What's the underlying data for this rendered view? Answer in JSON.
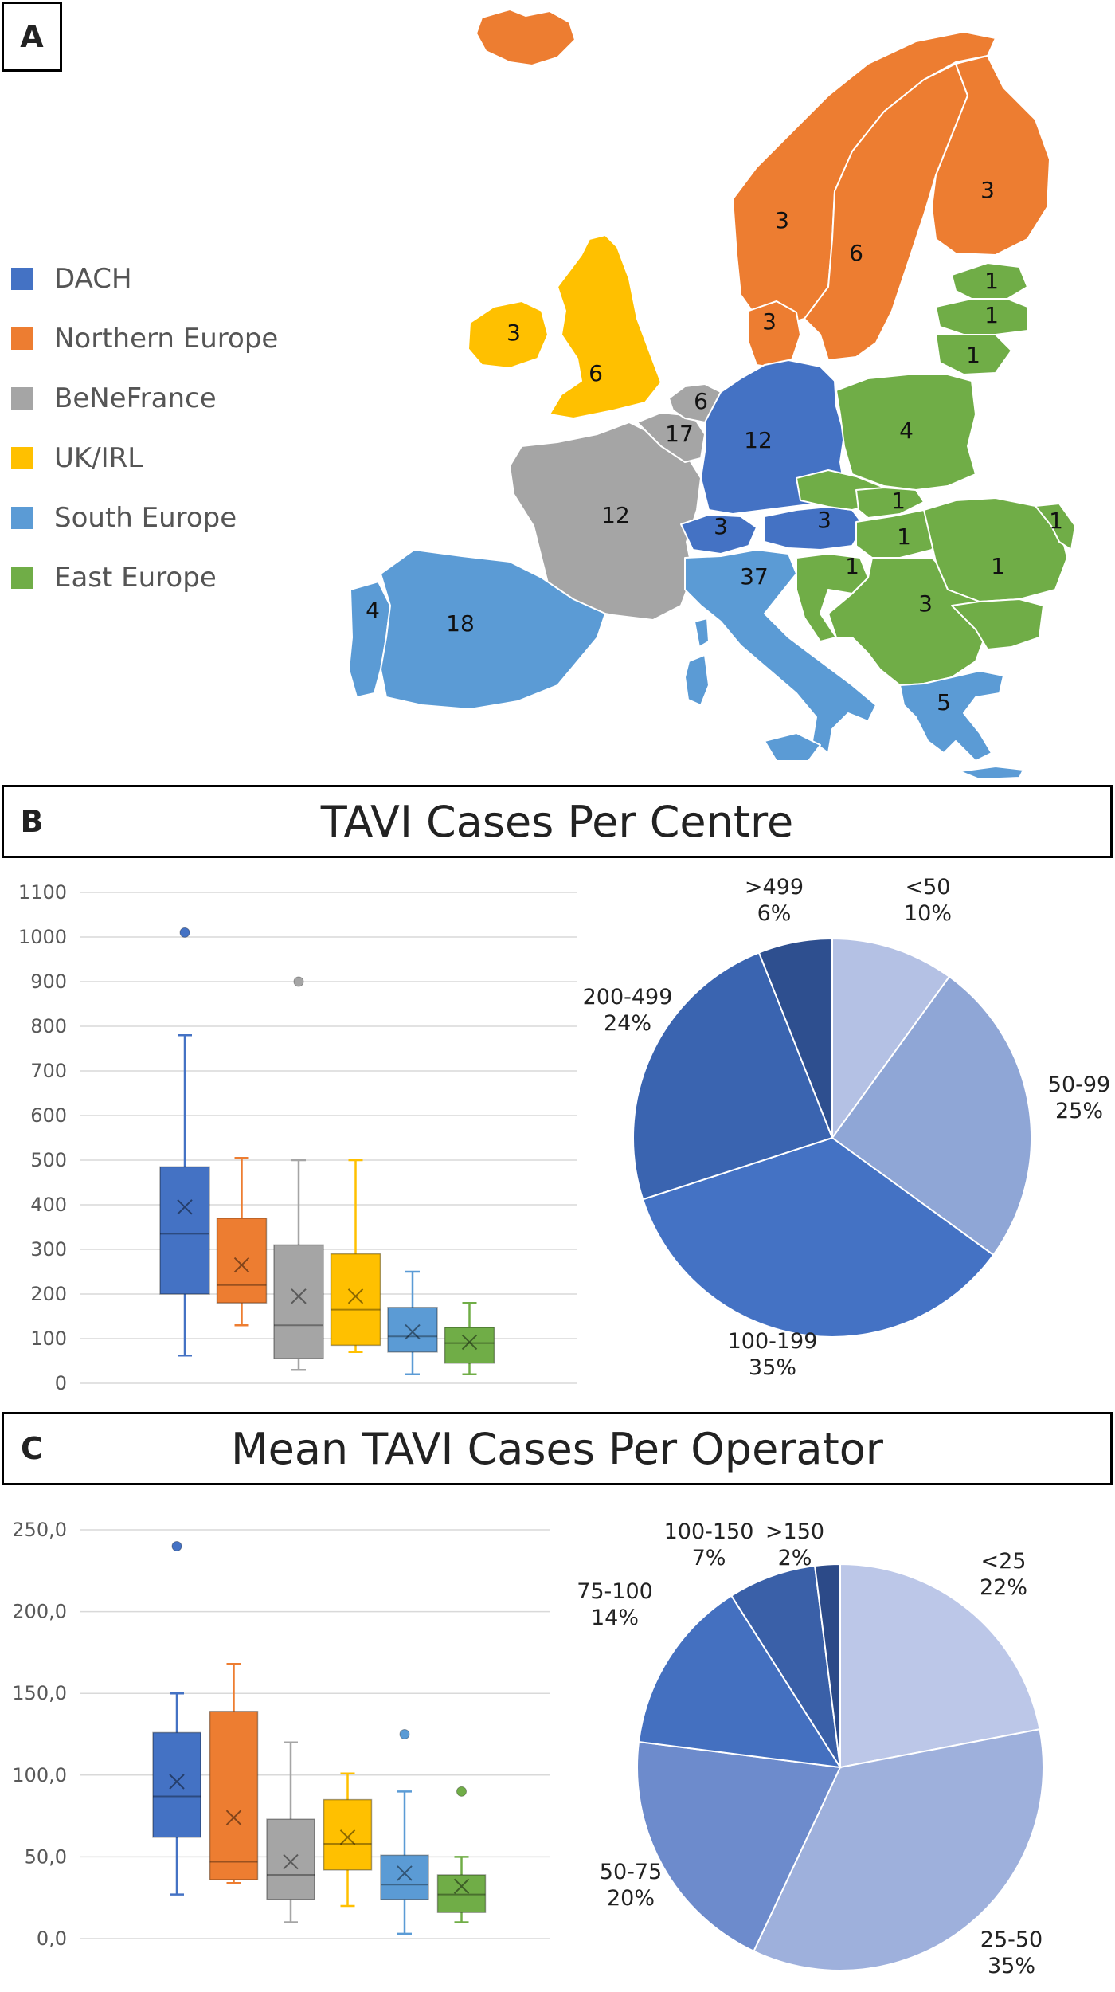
{
  "panels": {
    "a_label": "A",
    "b_label": "B",
    "c_label": "C",
    "b_title": "TAVI Cases Per Centre",
    "c_title": "Mean TAVI Cases Per Operator"
  },
  "colors": {
    "DACH": "#4472c4",
    "Northern Europe": "#ed7d31",
    "BeNeFrance": "#a5a5a5",
    "UK/IRL": "#ffc000",
    "South Europe": "#5b9bd5",
    "East Europe": "#70ad47"
  },
  "legend": [
    {
      "name": "DACH",
      "color": "#4472c4"
    },
    {
      "name": "Northern Europe",
      "color": "#ed7d31"
    },
    {
      "name": "BeNeFrance",
      "color": "#a5a5a5"
    },
    {
      "name": "UK/IRL",
      "color": "#ffc000"
    },
    {
      "name": "South Europe",
      "color": "#5b9bd5"
    },
    {
      "name": "East Europe",
      "color": "#70ad47"
    }
  ],
  "map_counts": [
    {
      "country": "Iceland",
      "region": "Northern Europe",
      "value": ""
    },
    {
      "country": "Norway",
      "region": "Northern Europe",
      "value": "3"
    },
    {
      "country": "Sweden",
      "region": "Northern Europe",
      "value": "6"
    },
    {
      "country": "Finland",
      "region": "Northern Europe",
      "value": "3"
    },
    {
      "country": "Denmark",
      "region": "Northern Europe",
      "value": "3"
    },
    {
      "country": "Ireland",
      "region": "UK/IRL",
      "value": "3"
    },
    {
      "country": "United Kingdom",
      "region": "UK/IRL",
      "value": "6"
    },
    {
      "country": "Netherlands",
      "region": "BeNeFrance",
      "value": "6"
    },
    {
      "country": "Belgium",
      "region": "BeNeFrance",
      "value": "17"
    },
    {
      "country": "France",
      "region": "BeNeFrance",
      "value": "12"
    },
    {
      "country": "Germany",
      "region": "DACH",
      "value": "12"
    },
    {
      "country": "Switzerland",
      "region": "DACH",
      "value": "3"
    },
    {
      "country": "Austria",
      "region": "DACH",
      "value": "3"
    },
    {
      "country": "Portugal",
      "region": "South Europe",
      "value": "4"
    },
    {
      "country": "Spain",
      "region": "South Europe",
      "value": "18"
    },
    {
      "country": "Italy",
      "region": "South Europe",
      "value": "37"
    },
    {
      "country": "Greece",
      "region": "South Europe",
      "value": "5"
    },
    {
      "country": "Estonia",
      "region": "East Europe",
      "value": "1"
    },
    {
      "country": "Latvia",
      "region": "East Europe",
      "value": "1"
    },
    {
      "country": "Lithuania",
      "region": "East Europe",
      "value": "1"
    },
    {
      "country": "Poland",
      "region": "East Europe",
      "value": "4"
    },
    {
      "country": "Czechia",
      "region": "East Europe",
      "value": "1"
    },
    {
      "country": "Hungary",
      "region": "East Europe",
      "value": "1"
    },
    {
      "country": "Croatia",
      "region": "East Europe",
      "value": "1"
    },
    {
      "country": "Serbia",
      "region": "East Europe",
      "value": "3"
    },
    {
      "country": "Romania",
      "region": "East Europe",
      "value": "1"
    },
    {
      "country": "Moldova",
      "region": "East Europe",
      "value": "1"
    }
  ],
  "chart_data": [
    {
      "type": "box",
      "panel": "B",
      "title": "TAVI Cases Per Centre",
      "ylim": [
        0,
        1100
      ],
      "yticks": [
        "0",
        "100",
        "200",
        "300",
        "400",
        "500",
        "600",
        "700",
        "800",
        "900",
        "1000",
        "1100"
      ],
      "grid": true,
      "series": [
        {
          "name": "DACH",
          "min": 62,
          "q1": 200,
          "median": 335,
          "q3": 485,
          "max": 780,
          "mean": 395,
          "outliers": [
            1010
          ]
        },
        {
          "name": "Northern Europe",
          "min": 130,
          "q1": 180,
          "median": 220,
          "q3": 370,
          "max": 505,
          "mean": 265,
          "outliers": []
        },
        {
          "name": "BeNeFrance",
          "min": 30,
          "q1": 55,
          "median": 130,
          "q3": 310,
          "max": 500,
          "mean": 195,
          "outliers": [
            900
          ]
        },
        {
          "name": "UK/IRL",
          "min": 70,
          "q1": 85,
          "median": 165,
          "q3": 290,
          "max": 500,
          "mean": 195,
          "outliers": []
        },
        {
          "name": "South Europe",
          "min": 20,
          "q1": 70,
          "median": 105,
          "q3": 170,
          "max": 250,
          "mean": 115,
          "outliers": []
        },
        {
          "name": "East Europe",
          "min": 20,
          "q1": 45,
          "median": 90,
          "q3": 125,
          "max": 180,
          "mean": 92,
          "outliers": []
        }
      ]
    },
    {
      "type": "pie",
      "panel": "B",
      "title": "TAVI Cases Per Centre",
      "slices": [
        {
          "label": "<50",
          "value": 10,
          "percent": "10%",
          "color": "#b4c1e4"
        },
        {
          "label": "50-99",
          "value": 25,
          "percent": "25%",
          "color": "#8fa6d6"
        },
        {
          "label": "100-199",
          "value": 35,
          "percent": "35%",
          "color": "#4472c4"
        },
        {
          "label": "200-499",
          "value": 24,
          "percent": "24%",
          "color": "#3a64b0"
        },
        {
          "label": ">499",
          "value": 6,
          "percent": "6%",
          "color": "#2e4f8f"
        }
      ]
    },
    {
      "type": "box",
      "panel": "C",
      "title": "Mean TAVI Cases Per Operator",
      "ylim": [
        0,
        250
      ],
      "yticks": [
        "0,0",
        "50,0",
        "100,0",
        "150,0",
        "200,0",
        "250,0"
      ],
      "grid": true,
      "series": [
        {
          "name": "DACH",
          "min": 27,
          "q1": 62,
          "median": 87,
          "q3": 126,
          "max": 150,
          "mean": 96,
          "outliers": [
            240
          ]
        },
        {
          "name": "Northern Europe",
          "min": 34,
          "q1": 36,
          "median": 47,
          "q3": 139,
          "max": 168,
          "mean": 74,
          "outliers": []
        },
        {
          "name": "BeNeFrance",
          "min": 10,
          "q1": 24,
          "median": 39,
          "q3": 73,
          "max": 120,
          "mean": 47,
          "outliers": []
        },
        {
          "name": "UK/IRL",
          "min": 20,
          "q1": 42,
          "median": 58,
          "q3": 85,
          "max": 101,
          "mean": 62,
          "outliers": []
        },
        {
          "name": "South Europe",
          "min": 3,
          "q1": 24,
          "median": 33,
          "q3": 51,
          "max": 90,
          "mean": 40,
          "outliers": [
            125
          ]
        },
        {
          "name": "East Europe",
          "min": 10,
          "q1": 16,
          "median": 27,
          "q3": 39,
          "max": 50,
          "mean": 32,
          "outliers": [
            90
          ]
        }
      ]
    },
    {
      "type": "pie",
      "panel": "C",
      "title": "Mean TAVI Cases Per Operator",
      "slices": [
        {
          "label": "<25",
          "value": 22,
          "percent": "22%",
          "color": "#bcc7e8"
        },
        {
          "label": "25-50",
          "value": 35,
          "percent": "35%",
          "color": "#9eb0dc"
        },
        {
          "label": "50-75",
          "value": 20,
          "percent": "20%",
          "color": "#6d8bcc"
        },
        {
          "label": "75-100",
          "value": 14,
          "percent": "14%",
          "color": "#4470c0"
        },
        {
          "label": "100-150",
          "value": 7,
          "percent": "7%",
          "color": "#3a60a8"
        },
        {
          "label": ">150",
          "value": 2,
          "percent": "2%",
          "color": "#2c4a88"
        }
      ]
    }
  ]
}
